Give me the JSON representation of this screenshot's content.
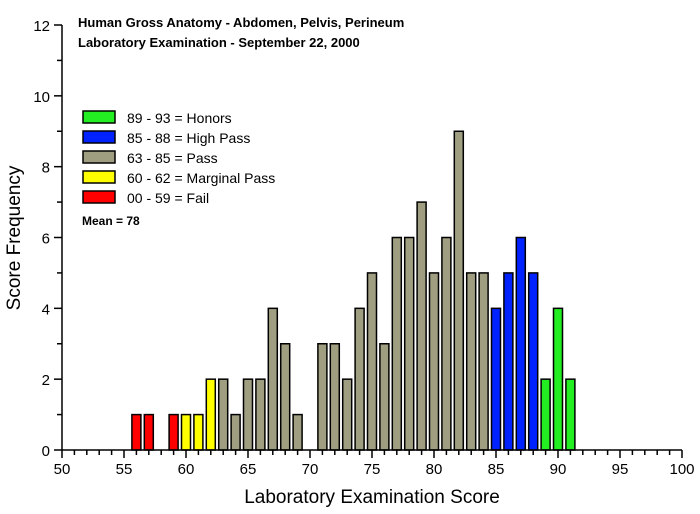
{
  "chart_data": {
    "type": "bar",
    "title": "Human Gross Anatomy - Abdomen, Pelvis, Perineum",
    "subtitle": "Laboratory Examination - September 22, 2000",
    "xlabel": "Laboratory Examination Score",
    "ylabel": "Score Frequency",
    "xlim": [
      50,
      100
    ],
    "ylim": [
      0,
      12
    ],
    "xticks": [
      "50",
      "55",
      "60",
      "65",
      "70",
      "75",
      "80",
      "85",
      "90",
      "95",
      "100"
    ],
    "yticks": [
      "0",
      "2",
      "4",
      "6",
      "8",
      "10",
      "12"
    ],
    "grid": false,
    "legend_position": "top-left",
    "legend": [
      {
        "label": "89 - 93 = Honors",
        "color": "#22ee22"
      },
      {
        "label": "85 - 88 = High Pass",
        "color": "#0022ff"
      },
      {
        "label": "63 - 85 = Pass",
        "color": "#a09e80"
      },
      {
        "label": "60 - 62 = Marginal Pass",
        "color": "#ffff00"
      },
      {
        "label": "00 - 59 = Fail",
        "color": "#ff0000"
      }
    ],
    "annotation": "Mean = 78",
    "bars": [
      {
        "x": 56,
        "y": 1,
        "cat": 4
      },
      {
        "x": 57,
        "y": 1,
        "cat": 4
      },
      {
        "x": 59,
        "y": 1,
        "cat": 4
      },
      {
        "x": 60,
        "y": 1,
        "cat": 3
      },
      {
        "x": 61,
        "y": 1,
        "cat": 3
      },
      {
        "x": 62,
        "y": 2,
        "cat": 3
      },
      {
        "x": 63,
        "y": 2,
        "cat": 2
      },
      {
        "x": 64,
        "y": 1,
        "cat": 2
      },
      {
        "x": 65,
        "y": 2,
        "cat": 2
      },
      {
        "x": 66,
        "y": 2,
        "cat": 2
      },
      {
        "x": 67,
        "y": 4,
        "cat": 2
      },
      {
        "x": 68,
        "y": 3,
        "cat": 2
      },
      {
        "x": 69,
        "y": 1,
        "cat": 2
      },
      {
        "x": 71,
        "y": 3,
        "cat": 2
      },
      {
        "x": 72,
        "y": 3,
        "cat": 2
      },
      {
        "x": 73,
        "y": 2,
        "cat": 2
      },
      {
        "x": 74,
        "y": 4,
        "cat": 2
      },
      {
        "x": 75,
        "y": 5,
        "cat": 2
      },
      {
        "x": 76,
        "y": 3,
        "cat": 2
      },
      {
        "x": 77,
        "y": 6,
        "cat": 2
      },
      {
        "x": 78,
        "y": 6,
        "cat": 2
      },
      {
        "x": 79,
        "y": 7,
        "cat": 2
      },
      {
        "x": 80,
        "y": 5,
        "cat": 2
      },
      {
        "x": 81,
        "y": 6,
        "cat": 2
      },
      {
        "x": 82,
        "y": 9,
        "cat": 2
      },
      {
        "x": 83,
        "y": 5,
        "cat": 2
      },
      {
        "x": 84,
        "y": 5,
        "cat": 2
      },
      {
        "x": 85,
        "y": 4,
        "cat": 1
      },
      {
        "x": 86,
        "y": 5,
        "cat": 1
      },
      {
        "x": 87,
        "y": 6,
        "cat": 1
      },
      {
        "x": 88,
        "y": 5,
        "cat": 1
      },
      {
        "x": 89,
        "y": 2,
        "cat": 0
      },
      {
        "x": 90,
        "y": 4,
        "cat": 0
      },
      {
        "x": 91,
        "y": 2,
        "cat": 0
      }
    ]
  }
}
